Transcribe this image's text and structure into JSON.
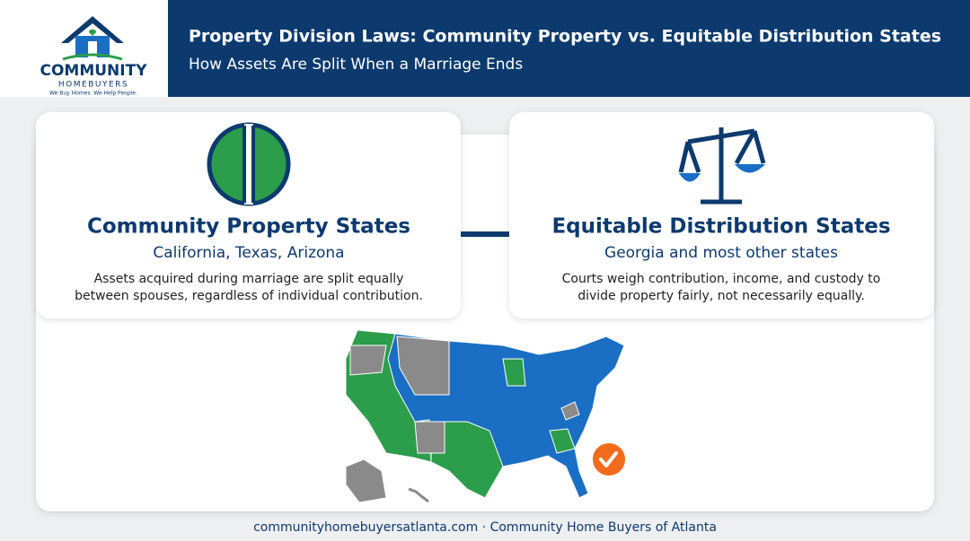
{
  "logo": {
    "name": "COMMUNITY",
    "subname": "HOMEBUYERS",
    "tagline": "We Buy Homes. We Help People."
  },
  "header": {
    "title": "Property Division Laws: Community Property vs. Equitable Distribution States",
    "subtitle": "How Assets Are Split When a Marriage Ends"
  },
  "cards": [
    {
      "title": "Community Property States",
      "states": "California, Texas, Arizona",
      "description": [
        "Assets acquired during marriage are split equally",
        "between spouses, regardless of individual contribution."
      ]
    },
    {
      "title": "Equitable Distribution States",
      "states": "Georgia and most other states",
      "description": [
        "Courts weigh contribution, income, and custody to",
        "divide property fairly, not necessarily equally."
      ]
    }
  ],
  "footer": "communityhomebuyersatlanta.com · Community Home Buyers of Atlanta"
}
